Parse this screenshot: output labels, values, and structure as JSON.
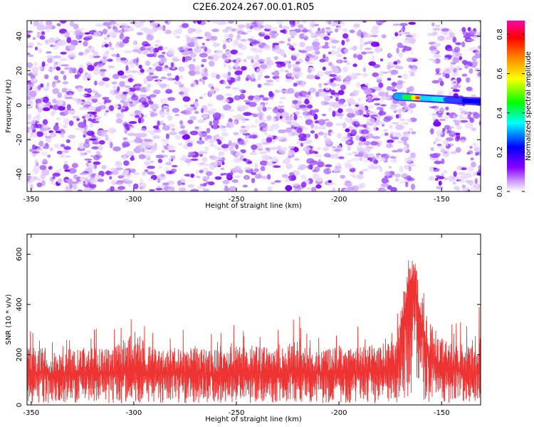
{
  "title": "C2E6.2024.267.00.01.R05",
  "chart_data": [
    {
      "type": "heatmap",
      "title": "C2E6.2024.267.00.01.R05",
      "xlabel": "Height of straight line (km)",
      "ylabel": "Frequency (Hz)",
      "xlim": [
        -352,
        -131
      ],
      "ylim": [
        -50,
        49
      ],
      "x_ticks": [
        -350,
        -300,
        -250,
        -200,
        -150
      ],
      "y_ticks": [
        -40,
        -20,
        0,
        20,
        40
      ],
      "colorbar": {
        "label": "Normalized spectral amplitude",
        "range": [
          0.0,
          0.87
        ],
        "ticks": [
          0.0,
          0.2,
          0.4,
          0.6,
          0.8
        ],
        "colors": [
          "#ffffff",
          "#8800ff",
          "#0000ff",
          "#00ffff",
          "#00ff00",
          "#ffff00",
          "#ff8800",
          "#ff0000",
          "#ff00aa"
        ]
      },
      "background_level": 0.05,
      "features": [
        {
          "kind": "signal_trace",
          "x_range": [
            -172,
            -131
          ],
          "freq_start": 5,
          "freq_end": 2,
          "peak_x": -165,
          "peak_amplitude": 0.87
        },
        {
          "kind": "blank_band",
          "x_range": [
            -163,
            -155
          ]
        }
      ]
    },
    {
      "type": "line",
      "xlabel": "Height of straight line (km)",
      "ylabel": "SNR (10 * v/v)",
      "xlim": [
        -352,
        -131
      ],
      "ylim": [
        0,
        680
      ],
      "x_ticks": [
        -350,
        -300,
        -250,
        -200,
        -150
      ],
      "y_ticks": [
        0,
        200,
        400,
        600
      ],
      "color": "#ee3333",
      "series": [
        {
          "x": [
            -350,
            -340,
            -330,
            -320,
            -310,
            -300,
            -290,
            -280,
            -270,
            -260,
            -250,
            -240,
            -230,
            -220,
            -210,
            -200,
            -190,
            -180,
            -172,
            -170,
            -168,
            -166,
            -164,
            -162,
            -160,
            -158,
            -155,
            -150,
            -145,
            -140,
            -135,
            -131
          ],
          "values": [
            130,
            125,
            128,
            130,
            126,
            132,
            128,
            127,
            130,
            125,
            130,
            128,
            126,
            130,
            127,
            128,
            130,
            135,
            150,
            240,
            360,
            470,
            520,
            430,
            300,
            240,
            180,
            150,
            140,
            135,
            130,
            128
          ],
          "noise_max": [
            320,
            290,
            300,
            310,
            300,
            430,
            300,
            300,
            310,
            300,
            330,
            320,
            310,
            380,
            300,
            310,
            320,
            330,
            340,
            520,
            600,
            640,
            680,
            610,
            520,
            480,
            430,
            360,
            340,
            350,
            330,
            420
          ]
        }
      ]
    }
  ]
}
